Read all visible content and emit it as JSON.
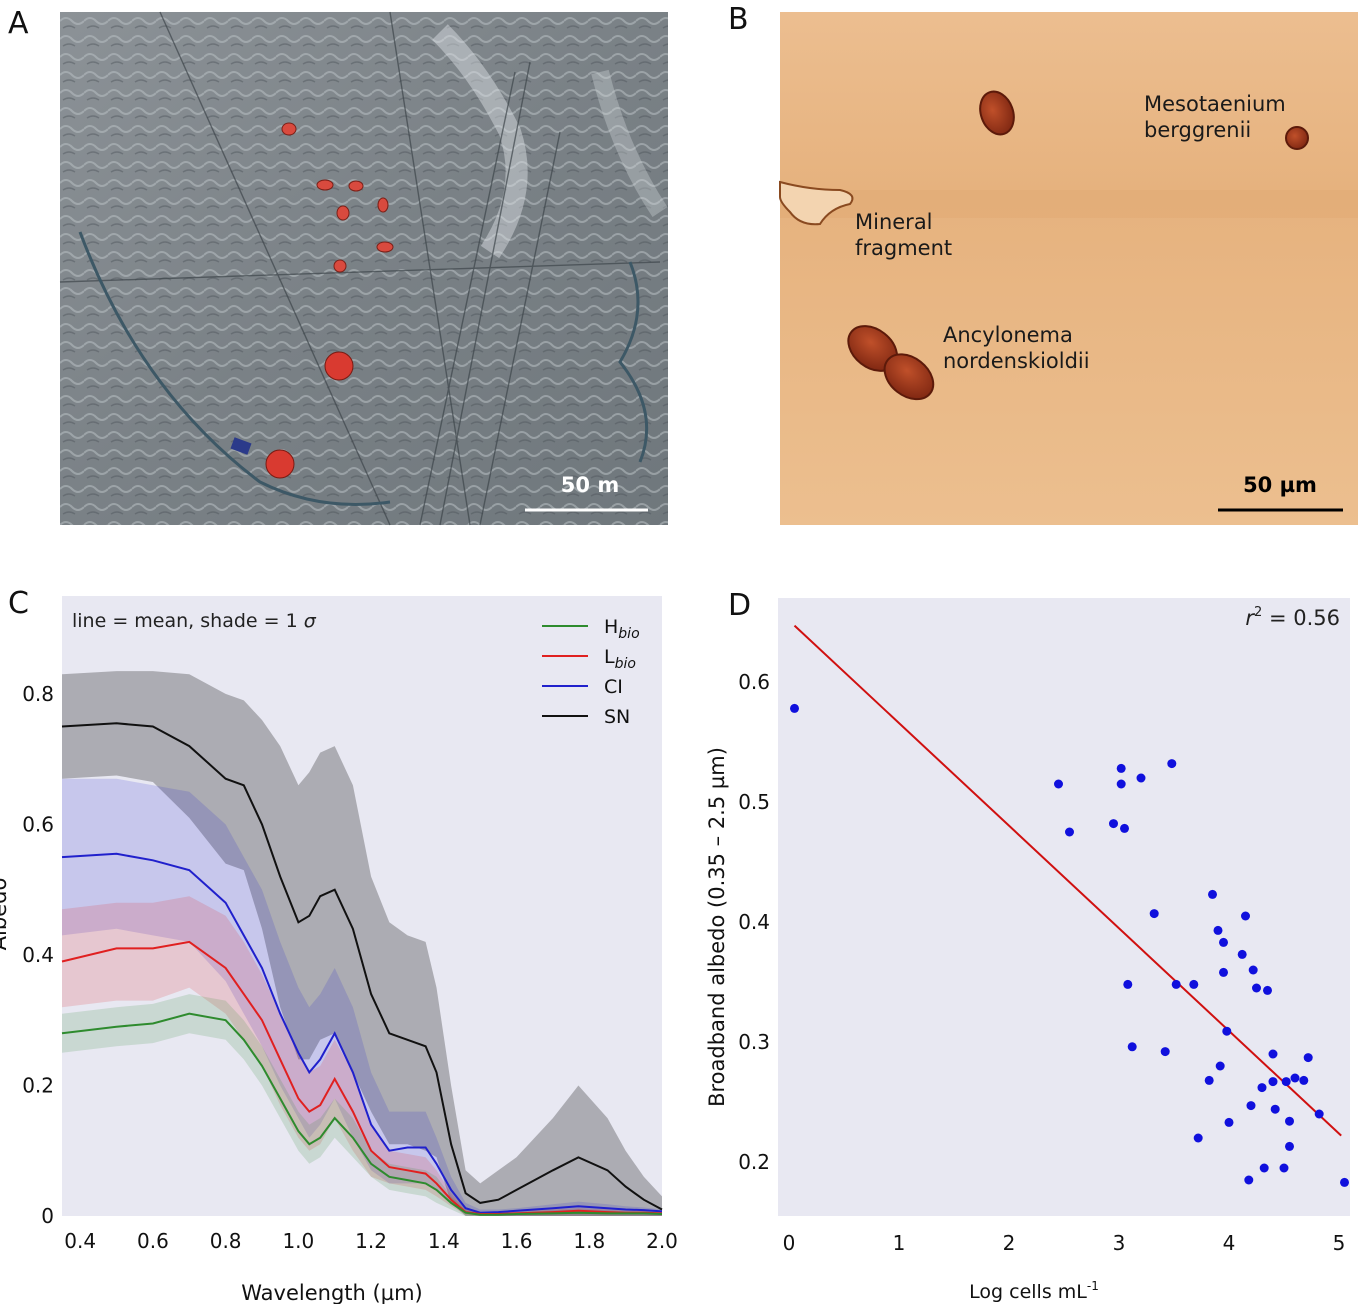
{
  "panels": {
    "a": {
      "letter": "A",
      "scale_label": "50 m"
    },
    "b": {
      "letter": "B",
      "scale_label": "50 µm",
      "labels": [
        "Mesotaenium\nberggrenii",
        "Mineral\nfragment",
        "Ancylonema\nnordenskioldii"
      ]
    },
    "c": {
      "letter": "C"
    },
    "d": {
      "letter": "D"
    }
  },
  "colors": {
    "chart_bg": "#e8e8f2",
    "hbio": "#2e8b2e",
    "lbio": "#e02020",
    "ci": "#2020cc",
    "sn": "#111111",
    "scatter": "#1010dd",
    "fit": "#d01010",
    "photo_a_bg": "#7f868c",
    "photo_b_bg": "#e9b98a"
  },
  "chart_data": [
    {
      "panel": "C",
      "type": "line",
      "annotation_parts": [
        "line = mean,  shade = 1 ",
        "σ"
      ],
      "xlabel": "Wavelength (µm)",
      "ylabel": "Albedo",
      "xlim": [
        0.35,
        2.0
      ],
      "ylim": [
        0,
        0.95
      ],
      "xticks": [
        "0.4",
        "0.6",
        "0.8",
        "1.0",
        "1.2",
        "1.4",
        "1.6",
        "1.8",
        "2.0"
      ],
      "yticks": [
        "0",
        "0.2",
        "0.4",
        "0.6",
        "0.8"
      ],
      "legend_position": "top-right",
      "legend": [
        {
          "main": "H",
          "sub": "bio"
        },
        {
          "main": "L",
          "sub": "bio"
        },
        {
          "main": "CI",
          "sub": ""
        },
        {
          "main": "SN",
          "sub": ""
        }
      ],
      "x": [
        0.35,
        0.5,
        0.6,
        0.7,
        0.8,
        0.85,
        0.9,
        0.95,
        1.0,
        1.03,
        1.06,
        1.1,
        1.15,
        1.2,
        1.25,
        1.3,
        1.35,
        1.38,
        1.42,
        1.46,
        1.5,
        1.55,
        1.6,
        1.7,
        1.77,
        1.85,
        1.9,
        1.95,
        2.0
      ],
      "series": [
        {
          "name": "Hbio",
          "mean": [
            0.28,
            0.29,
            0.295,
            0.31,
            0.3,
            0.27,
            0.23,
            0.18,
            0.13,
            0.11,
            0.12,
            0.15,
            0.12,
            0.08,
            0.06,
            0.055,
            0.05,
            0.04,
            0.02,
            0.005,
            0.002,
            0.002,
            0.003,
            0.004,
            0.005,
            0.004,
            0.004,
            0.004,
            0.003
          ],
          "upper": [
            0.31,
            0.32,
            0.325,
            0.34,
            0.33,
            0.3,
            0.26,
            0.21,
            0.16,
            0.14,
            0.15,
            0.18,
            0.15,
            0.1,
            0.08,
            0.075,
            0.07,
            0.06,
            0.03,
            0.01,
            0.005,
            0.005,
            0.006,
            0.008,
            0.01,
            0.008,
            0.007,
            0.007,
            0.005
          ],
          "lower": [
            0.25,
            0.26,
            0.265,
            0.28,
            0.27,
            0.24,
            0.2,
            0.15,
            0.1,
            0.08,
            0.09,
            0.12,
            0.09,
            0.06,
            0.04,
            0.035,
            0.03,
            0.02,
            0.01,
            0.0,
            0.0,
            0.0,
            0.0,
            0.0,
            0.0,
            0.0,
            0.0,
            0.0,
            0.0
          ]
        },
        {
          "name": "Lbio",
          "mean": [
            0.39,
            0.41,
            0.41,
            0.42,
            0.38,
            0.34,
            0.3,
            0.24,
            0.18,
            0.16,
            0.17,
            0.21,
            0.16,
            0.1,
            0.075,
            0.07,
            0.065,
            0.05,
            0.025,
            0.006,
            0.003,
            0.003,
            0.004,
            0.006,
            0.008,
            0.006,
            0.005,
            0.005,
            0.004
          ],
          "upper": [
            0.47,
            0.48,
            0.48,
            0.49,
            0.46,
            0.42,
            0.37,
            0.31,
            0.25,
            0.22,
            0.23,
            0.27,
            0.22,
            0.14,
            0.1,
            0.095,
            0.09,
            0.07,
            0.035,
            0.01,
            0.006,
            0.006,
            0.007,
            0.01,
            0.012,
            0.01,
            0.008,
            0.008,
            0.006
          ],
          "lower": [
            0.32,
            0.33,
            0.33,
            0.35,
            0.31,
            0.27,
            0.23,
            0.17,
            0.12,
            0.1,
            0.11,
            0.15,
            0.1,
            0.06,
            0.05,
            0.045,
            0.04,
            0.03,
            0.015,
            0.002,
            0.0,
            0.0,
            0.0,
            0.0,
            0.0,
            0.0,
            0.0,
            0.0,
            0.0
          ]
        },
        {
          "name": "CI",
          "mean": [
            0.55,
            0.555,
            0.545,
            0.53,
            0.48,
            0.43,
            0.38,
            0.31,
            0.25,
            0.22,
            0.24,
            0.28,
            0.22,
            0.14,
            0.1,
            0.105,
            0.105,
            0.08,
            0.04,
            0.012,
            0.005,
            0.006,
            0.008,
            0.012,
            0.015,
            0.012,
            0.01,
            0.009,
            0.007
          ],
          "upper": [
            0.67,
            0.67,
            0.66,
            0.65,
            0.6,
            0.55,
            0.5,
            0.42,
            0.35,
            0.32,
            0.34,
            0.38,
            0.32,
            0.22,
            0.16,
            0.16,
            0.16,
            0.12,
            0.06,
            0.02,
            0.01,
            0.01,
            0.012,
            0.018,
            0.022,
            0.018,
            0.015,
            0.013,
            0.01
          ],
          "lower": [
            0.43,
            0.44,
            0.43,
            0.42,
            0.36,
            0.31,
            0.26,
            0.2,
            0.15,
            0.12,
            0.14,
            0.18,
            0.12,
            0.07,
            0.05,
            0.05,
            0.05,
            0.04,
            0.02,
            0.004,
            0.0,
            0.0,
            0.0,
            0.0,
            0.0,
            0.0,
            0.0,
            0.0,
            0.0
          ]
        },
        {
          "name": "SN",
          "mean": [
            0.75,
            0.755,
            0.75,
            0.72,
            0.67,
            0.66,
            0.6,
            0.52,
            0.45,
            0.46,
            0.49,
            0.5,
            0.44,
            0.34,
            0.28,
            0.27,
            0.26,
            0.22,
            0.11,
            0.035,
            0.02,
            0.025,
            0.04,
            0.07,
            0.09,
            0.07,
            0.045,
            0.025,
            0.01
          ],
          "upper": [
            0.83,
            0.835,
            0.835,
            0.83,
            0.8,
            0.79,
            0.76,
            0.72,
            0.66,
            0.68,
            0.71,
            0.72,
            0.66,
            0.52,
            0.45,
            0.43,
            0.42,
            0.35,
            0.2,
            0.07,
            0.05,
            0.07,
            0.09,
            0.15,
            0.2,
            0.15,
            0.1,
            0.06,
            0.03
          ],
          "lower": [
            0.67,
            0.675,
            0.665,
            0.61,
            0.54,
            0.53,
            0.44,
            0.32,
            0.24,
            0.24,
            0.27,
            0.28,
            0.22,
            0.16,
            0.11,
            0.11,
            0.1,
            0.09,
            0.02,
            0.0,
            0.0,
            0.0,
            0.0,
            0.0,
            0.0,
            0.0,
            0.0,
            0.0,
            0.0
          ]
        }
      ]
    },
    {
      "panel": "D",
      "type": "scatter",
      "annotation_parts": [
        "r",
        "2",
        " = 0.56"
      ],
      "xlabel_parts": [
        "Log cells mL",
        "-1"
      ],
      "ylabel": "Broadband albedo (0.35 – 2.5 µm)",
      "xlim": [
        -0.1,
        5.1
      ],
      "ylim": [
        0.155,
        0.67
      ],
      "xticks": [
        "0",
        "1",
        "2",
        "3",
        "4",
        "5"
      ],
      "yticks": [
        "0.2",
        "0.3",
        "0.4",
        "0.5",
        "0.6"
      ],
      "fit_line": {
        "x": [
          0.05,
          5.02
        ],
        "y": [
          0.647,
          0.222
        ]
      },
      "points": [
        [
          0.05,
          0.578
        ],
        [
          2.45,
          0.515
        ],
        [
          2.55,
          0.475
        ],
        [
          2.95,
          0.482
        ],
        [
          3.02,
          0.528
        ],
        [
          3.02,
          0.515
        ],
        [
          3.05,
          0.478
        ],
        [
          3.2,
          0.52
        ],
        [
          3.48,
          0.532
        ],
        [
          3.08,
          0.348
        ],
        [
          3.12,
          0.296
        ],
        [
          3.32,
          0.407
        ],
        [
          3.42,
          0.292
        ],
        [
          3.52,
          0.348
        ],
        [
          3.68,
          0.348
        ],
        [
          3.72,
          0.22
        ],
        [
          3.82,
          0.268
        ],
        [
          3.85,
          0.423
        ],
        [
          3.9,
          0.393
        ],
        [
          3.92,
          0.28
        ],
        [
          3.95,
          0.383
        ],
        [
          3.95,
          0.358
        ],
        [
          3.98,
          0.309
        ],
        [
          4.0,
          0.233
        ],
        [
          4.12,
          0.373
        ],
        [
          4.15,
          0.405
        ],
        [
          4.18,
          0.185
        ],
        [
          4.2,
          0.247
        ],
        [
          4.22,
          0.36
        ],
        [
          4.25,
          0.345
        ],
        [
          4.3,
          0.262
        ],
        [
          4.32,
          0.195
        ],
        [
          4.35,
          0.343
        ],
        [
          4.4,
          0.267
        ],
        [
          4.4,
          0.29
        ],
        [
          4.42,
          0.244
        ],
        [
          4.5,
          0.195
        ],
        [
          4.52,
          0.267
        ],
        [
          4.55,
          0.234
        ],
        [
          4.55,
          0.213
        ],
        [
          4.6,
          0.27
        ],
        [
          4.68,
          0.268
        ],
        [
          4.72,
          0.287
        ],
        [
          4.82,
          0.24
        ],
        [
          5.05,
          0.183
        ]
      ]
    }
  ]
}
